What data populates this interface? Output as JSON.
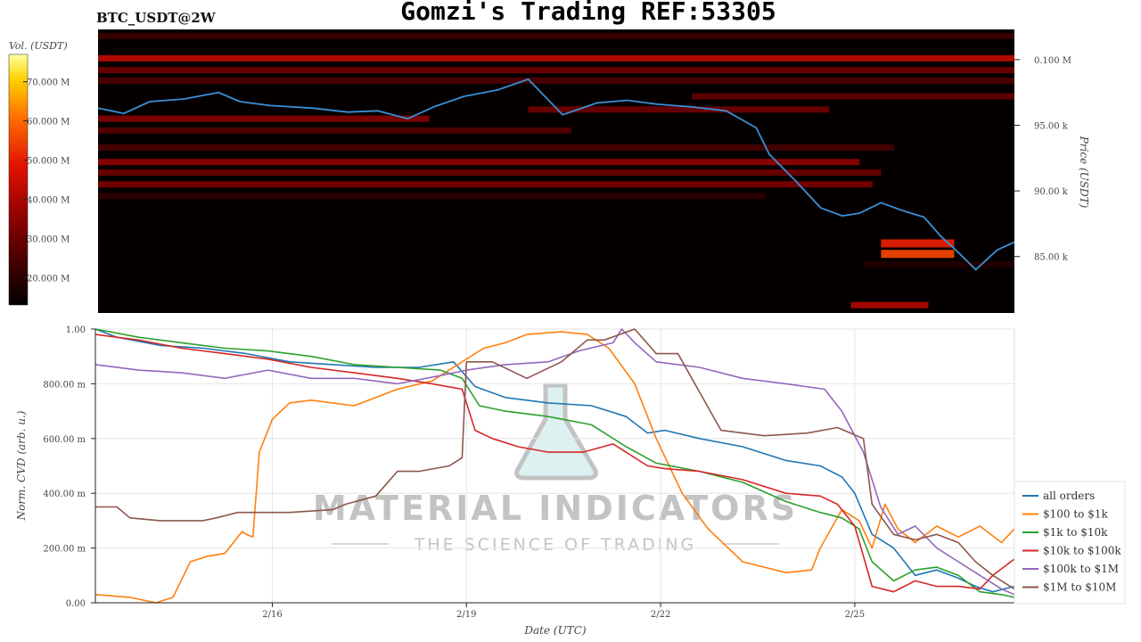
{
  "header": {
    "title": "Gomzi's Trading REF:53305",
    "symbol": "BTC_USDT@2W"
  },
  "watermark": {
    "line1": "MATERIAL INDICATORS",
    "line2": "THE SCIENCE OF TRADING"
  },
  "chart_data": [
    {
      "type": "heatmap",
      "colorbar_label": "Vol. (USDT)",
      "colorbar_ticks": [
        "70.000 M",
        "60.000 M",
        "50.000 M",
        "40.000 M",
        "30.000 M",
        "20.000 M"
      ],
      "colorbar_values": [
        70,
        60,
        50,
        40,
        30,
        20
      ],
      "colorbar_range": [
        13,
        77
      ],
      "ylabel": "Price (USDT)",
      "ytick_labels": [
        "0.100 M",
        "95.00 k",
        "90.00 k",
        "85.00 k"
      ],
      "ytick_values": [
        100000,
        95000,
        90000,
        85000
      ],
      "ylim": [
        80700,
        102300
      ],
      "grid": false,
      "price_series": {
        "color": "#3a8fd6",
        "x_day": [
          0,
          0.6,
          1.2,
          2.0,
          2.8,
          3.3,
          4.0,
          5.0,
          5.8,
          6.5,
          7.2,
          7.8,
          8.5,
          9.3,
          10.0,
          10.8,
          11.6,
          12.3,
          13.0,
          13.8,
          14.6,
          15.3,
          15.6,
          16.2,
          16.8,
          17.3,
          17.7,
          18.2,
          18.7,
          19.2,
          19.6,
          20.0,
          20.4,
          20.9,
          21.3
        ],
        "y": [
          96300,
          95900,
          96800,
          97000,
          97500,
          96800,
          96500,
          96300,
          96000,
          96100,
          95500,
          96400,
          97200,
          97700,
          98500,
          95800,
          96700,
          96900,
          96600,
          96400,
          96100,
          94800,
          92800,
          90800,
          88700,
          88100,
          88300,
          89100,
          88500,
          88000,
          86500,
          85300,
          84000,
          85500,
          86100
        ]
      },
      "bands": [
        {
          "y": 101800,
          "x_day": [
            0,
            21.3
          ],
          "vol": 22
        },
        {
          "y": 100100,
          "x_day": [
            0,
            21.3
          ],
          "vol": 42
        },
        {
          "y": 99200,
          "x_day": [
            0,
            21.3
          ],
          "vol": 30
        },
        {
          "y": 98400,
          "x_day": [
            0,
            21.3
          ],
          "vol": 25
        },
        {
          "y": 97200,
          "x_day": [
            13.8,
            21.3
          ],
          "vol": 28
        },
        {
          "y": 96200,
          "x_day": [
            10.0,
            17.0
          ],
          "vol": 30
        },
        {
          "y": 95500,
          "x_day": [
            0,
            7.7
          ],
          "vol": 33
        },
        {
          "y": 94600,
          "x_day": [
            0,
            11.0
          ],
          "vol": 26
        },
        {
          "y": 93300,
          "x_day": [
            0,
            18.5
          ],
          "vol": 24
        },
        {
          "y": 92200,
          "x_day": [
            0,
            17.7
          ],
          "vol": 35
        },
        {
          "y": 91400,
          "x_day": [
            0,
            18.2
          ],
          "vol": 30
        },
        {
          "y": 90500,
          "x_day": [
            0,
            18.0
          ],
          "vol": 32
        },
        {
          "y": 89600,
          "x_day": [
            0,
            15.5
          ],
          "vol": 20
        },
        {
          "y": 86000,
          "x_day": [
            18.2,
            19.9
          ],
          "vol": 50
        },
        {
          "y": 85200,
          "x_day": [
            18.2,
            19.9
          ],
          "vol": 55
        },
        {
          "y": 84400,
          "x_day": [
            17.8,
            21.3
          ],
          "vol": 18
        },
        {
          "y": 81300,
          "x_day": [
            17.5,
            19.3
          ],
          "vol": 40
        }
      ]
    },
    {
      "type": "line",
      "xlabel": "Date (UTC)",
      "ylabel": "Norm. CVD (arb. u.)",
      "x_tick_labels": [
        "2/16",
        "2/19",
        "2/22",
        "2/25"
      ],
      "x_tick_values": [
        4.1,
        8.6,
        13.1,
        17.6
      ],
      "xlim": [
        0,
        21.3
      ],
      "y_tick_labels": [
        "0.00",
        "200.00 m",
        "400.00 m",
        "600.00 m",
        "800.00 m",
        "1.00"
      ],
      "y_tick_values": [
        0,
        0.2,
        0.4,
        0.6,
        0.8,
        1.0
      ],
      "ylim": [
        0,
        1
      ],
      "grid": true,
      "legend_position": "bottom-right",
      "series": [
        {
          "name": "all orders",
          "color": "#1f77b4",
          "x": [
            0,
            0.5,
            1.5,
            2.5,
            3.5,
            4.5,
            5.5,
            6.5,
            7.5,
            8.3,
            8.8,
            9.5,
            10.5,
            11.5,
            12.3,
            12.8,
            13.2,
            14.0,
            15.0,
            16.0,
            16.8,
            17.3,
            17.6,
            18.0,
            18.5,
            19.0,
            19.5,
            20.0,
            20.4,
            20.8,
            21.3
          ],
          "y": [
            1.0,
            0.97,
            0.94,
            0.93,
            0.91,
            0.88,
            0.87,
            0.86,
            0.86,
            0.88,
            0.79,
            0.75,
            0.73,
            0.72,
            0.68,
            0.62,
            0.63,
            0.6,
            0.57,
            0.52,
            0.5,
            0.46,
            0.4,
            0.25,
            0.2,
            0.1,
            0.12,
            0.09,
            0.06,
            0.04,
            0.06
          ]
        },
        {
          "name": "$100 to $1k",
          "color": "#ff7f0e",
          "x": [
            0,
            0.8,
            1.4,
            1.8,
            2.2,
            2.6,
            3.0,
            3.4,
            3.5,
            3.65,
            3.8,
            4.1,
            4.5,
            5.0,
            6.0,
            7.0,
            7.8,
            8.5,
            9.0,
            9.5,
            10.0,
            10.8,
            11.4,
            11.9,
            12.5,
            13.0,
            13.6,
            14.2,
            15.0,
            16.0,
            16.6,
            16.8,
            17.3,
            17.7,
            18.0,
            18.3,
            18.6,
            19.0,
            19.5,
            20.0,
            20.5,
            21.0,
            21.3
          ],
          "y": [
            0.03,
            0.02,
            0.0,
            0.02,
            0.15,
            0.17,
            0.18,
            0.26,
            0.25,
            0.24,
            0.55,
            0.67,
            0.73,
            0.74,
            0.72,
            0.78,
            0.81,
            0.88,
            0.93,
            0.95,
            0.98,
            0.99,
            0.98,
            0.93,
            0.8,
            0.6,
            0.4,
            0.27,
            0.15,
            0.11,
            0.12,
            0.2,
            0.34,
            0.3,
            0.2,
            0.36,
            0.27,
            0.22,
            0.28,
            0.24,
            0.28,
            0.22,
            0.27
          ]
        },
        {
          "name": "$1k to $10k",
          "color": "#2ca02c",
          "x": [
            0,
            1.0,
            2.0,
            3.0,
            4.0,
            5.0,
            6.0,
            7.0,
            8.0,
            8.5,
            8.9,
            9.5,
            10.5,
            11.5,
            12.3,
            13.0,
            14.0,
            15.0,
            16.0,
            16.8,
            17.3,
            17.7,
            18.0,
            18.5,
            19.0,
            19.5,
            20.0,
            20.5,
            21.0,
            21.3
          ],
          "y": [
            1.0,
            0.97,
            0.95,
            0.93,
            0.92,
            0.9,
            0.87,
            0.86,
            0.85,
            0.82,
            0.72,
            0.7,
            0.68,
            0.65,
            0.57,
            0.51,
            0.48,
            0.44,
            0.37,
            0.33,
            0.31,
            0.27,
            0.15,
            0.08,
            0.12,
            0.13,
            0.1,
            0.04,
            0.03,
            0.02
          ]
        },
        {
          "name": "$10k to $100k",
          "color": "#d62728",
          "x": [
            0,
            1.0,
            2.0,
            3.0,
            4.0,
            5.0,
            6.0,
            7.0,
            7.8,
            8.5,
            8.8,
            9.2,
            9.8,
            10.5,
            11.3,
            12.0,
            12.8,
            13.2,
            14.0,
            15.0,
            16.0,
            16.8,
            17.2,
            17.6,
            18.0,
            18.5,
            19.0,
            19.5,
            20.0,
            20.5,
            20.8,
            21.3
          ],
          "y": [
            0.98,
            0.96,
            0.93,
            0.91,
            0.89,
            0.86,
            0.84,
            0.82,
            0.8,
            0.78,
            0.63,
            0.6,
            0.57,
            0.55,
            0.55,
            0.58,
            0.5,
            0.49,
            0.48,
            0.45,
            0.4,
            0.39,
            0.36,
            0.28,
            0.06,
            0.04,
            0.08,
            0.06,
            0.06,
            0.05,
            0.1,
            0.16
          ]
        },
        {
          "name": "$100k to $1M",
          "color": "#9467bd",
          "x": [
            0,
            1.0,
            2.0,
            3.0,
            4.0,
            5.0,
            6.0,
            7.0,
            8.0,
            8.6,
            9.5,
            10.5,
            11.2,
            12.0,
            12.2,
            12.5,
            13.0,
            14.0,
            15.0,
            16.0,
            16.9,
            17.3,
            17.8,
            18.2,
            18.6,
            19.0,
            19.5,
            20.0,
            20.5,
            21.0,
            21.3
          ],
          "y": [
            0.87,
            0.85,
            0.84,
            0.82,
            0.85,
            0.82,
            0.82,
            0.8,
            0.83,
            0.85,
            0.87,
            0.88,
            0.92,
            0.95,
            1.0,
            0.95,
            0.88,
            0.86,
            0.82,
            0.8,
            0.78,
            0.7,
            0.55,
            0.35,
            0.25,
            0.28,
            0.2,
            0.15,
            0.1,
            0.05,
            0.03
          ]
        },
        {
          "name": "$1M to $10M",
          "color": "#8c564b",
          "x": [
            0,
            0.5,
            0.8,
            1.5,
            2.5,
            2.8,
            3.3,
            4.0,
            4.5,
            5.5,
            5.8,
            6.5,
            7.0,
            7.5,
            8.2,
            8.5,
            8.6,
            9.2,
            10.0,
            10.8,
            11.4,
            11.8,
            12.5,
            13.0,
            13.5,
            14.5,
            15.5,
            16.5,
            17.2,
            17.8,
            18.0,
            18.5,
            19.0,
            19.5,
            20.0,
            20.4,
            20.8,
            21.3
          ],
          "y": [
            0.35,
            0.35,
            0.31,
            0.3,
            0.3,
            0.31,
            0.33,
            0.33,
            0.33,
            0.34,
            0.36,
            0.39,
            0.48,
            0.48,
            0.5,
            0.53,
            0.88,
            0.88,
            0.82,
            0.88,
            0.96,
            0.96,
            1.0,
            0.91,
            0.91,
            0.63,
            0.61,
            0.62,
            0.64,
            0.6,
            0.36,
            0.25,
            0.23,
            0.25,
            0.22,
            0.15,
            0.1,
            0.05
          ]
        }
      ]
    }
  ]
}
